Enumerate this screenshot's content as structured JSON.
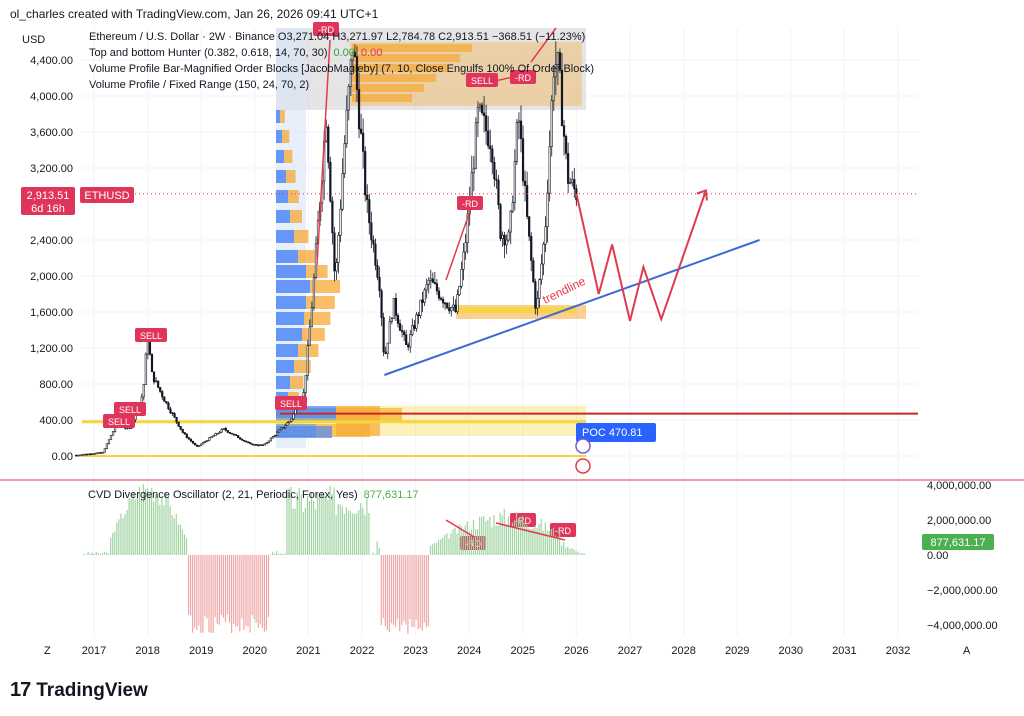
{
  "header": {
    "creator": "ol_charles created with TradingView.com, Jan 26, 2026 09:41 UTC+1"
  },
  "legend": {
    "line1": "Ethereum / U.S. Dollar · 2W · Binance  O3,271.04  H3,271.97  L2,784.78  C2,913.51  −368.51 (−11.23%)",
    "line2": "Top and bottom Hunter (0.382, 0.618, 14, 70, 30)",
    "line2_v1": "0.00",
    "line2_v2": "0.00",
    "line3": "Volume Profile Bar-Magnified Order Blocks [JacobMagleby] (7, 10, Close Engulfs 100% Of Order Block)",
    "line4": "Volume Profile / Fixed Range (150, 24, 70, 2)"
  },
  "price_axis": {
    "currency": "USD",
    "ticks": [
      "4,400.00",
      "4,000.00",
      "3,600.00",
      "3,200.00",
      "2,400.00",
      "2,000.00",
      "1,600.00",
      "1,200.00",
      "800.00",
      "400.00",
      "0.00"
    ],
    "last_price": "2,913.51",
    "countdown": "6d 16h",
    "symbol": "ETHUSD"
  },
  "annotations": {
    "trendline": "trendline",
    "poc": "POC  470.81",
    "sell": "SELL",
    "rd": "-RD"
  },
  "oscillator": {
    "title": "CVD Divergence Oscillator (2, 21, Periodic, Forex, Yes)",
    "value": "877,631.17",
    "axis_ticks": [
      "4,000,000.00",
      "2,000,000.00",
      "0.00",
      "−2,000,000.00",
      "−4,000,000.00"
    ],
    "value_badge": "877,631.17"
  },
  "time_axis": {
    "ticks": [
      "2017",
      "2018",
      "2019",
      "2020",
      "2021",
      "2022",
      "2023",
      "2024",
      "2025",
      "2026",
      "2027",
      "2028",
      "2029",
      "2030",
      "2031",
      "2032"
    ],
    "left_btn": "Z",
    "right_btn": "A"
  },
  "brand": {
    "name": "TradingView",
    "logo": "17"
  },
  "colors": {
    "bull": "#131722",
    "bear": "#131722",
    "trend": "#3d6ad6",
    "projection": "#e23b4b",
    "poc_line": "#c62828",
    "profile_blue": "#4f86f7",
    "profile_orange": "#f7a833",
    "profile_yellow": "#f5d63d",
    "osc_green": "#9fd3a0",
    "osc_red": "#f0a6a6",
    "badge_red": "#e0355a",
    "badge_green": "#4caf50",
    "poc_badge": "#2962ff"
  },
  "chart_data": {
    "type": "candlestick",
    "title": "Ethereum / U.S. Dollar · 2W · Binance",
    "ylim": [
      0,
      4800
    ],
    "x_range": [
      "2016-09",
      "2032-06"
    ],
    "price_path": [
      {
        "date": "2016-09",
        "price": 10
      },
      {
        "date": "2017-03",
        "price": 40
      },
      {
        "date": "2017-06",
        "price": 350
      },
      {
        "date": "2017-09",
        "price": 300
      },
      {
        "date": "2017-12",
        "price": 700
      },
      {
        "date": "2018-01",
        "price": 1350
      },
      {
        "date": "2018-02",
        "price": 900
      },
      {
        "date": "2018-05",
        "price": 600
      },
      {
        "date": "2018-09",
        "price": 250
      },
      {
        "date": "2018-12",
        "price": 100
      },
      {
        "date": "2019-06",
        "price": 300
      },
      {
        "date": "2019-12",
        "price": 130
      },
      {
        "date": "2020-03",
        "price": 120
      },
      {
        "date": "2020-09",
        "price": 400
      },
      {
        "date": "2020-12",
        "price": 700
      },
      {
        "date": "2021-02",
        "price": 1800
      },
      {
        "date": "2021-05",
        "price": 3800
      },
      {
        "date": "2021-07",
        "price": 1900
      },
      {
        "date": "2021-09",
        "price": 3400
      },
      {
        "date": "2021-11",
        "price": 4600
      },
      {
        "date": "2022-02",
        "price": 2800
      },
      {
        "date": "2022-05",
        "price": 1900
      },
      {
        "date": "2022-06",
        "price": 1050
      },
      {
        "date": "2022-08",
        "price": 1700
      },
      {
        "date": "2022-11",
        "price": 1200
      },
      {
        "date": "2023-04",
        "price": 1950
      },
      {
        "date": "2023-08",
        "price": 1700
      },
      {
        "date": "2023-10",
        "price": 1600
      },
      {
        "date": "2023-12",
        "price": 2300
      },
      {
        "date": "2024-03",
        "price": 3800
      },
      {
        "date": "2024-06",
        "price": 3500
      },
      {
        "date": "2024-08",
        "price": 2500
      },
      {
        "date": "2024-10",
        "price": 2400
      },
      {
        "date": "2024-12",
        "price": 3800
      },
      {
        "date": "2025-02",
        "price": 2600
      },
      {
        "date": "2025-04",
        "price": 1600
      },
      {
        "date": "2025-06",
        "price": 2500
      },
      {
        "date": "2025-08",
        "price": 4400
      },
      {
        "date": "2025-09",
        "price": 4300
      },
      {
        "date": "2025-11",
        "price": 3100
      },
      {
        "date": "2026-01",
        "price": 2914
      }
    ],
    "last_close": 2913.51,
    "poc": 470.81,
    "trendline": [
      {
        "date": "2022-06",
        "price": 900
      },
      {
        "date": "2029-06",
        "price": 2400
      }
    ],
    "projection_path": [
      {
        "date": "2026-01",
        "price": 2914
      },
      {
        "date": "2026-06",
        "price": 1800
      },
      {
        "date": "2026-09",
        "price": 2350
      },
      {
        "date": "2027-01",
        "price": 1500
      },
      {
        "date": "2027-04",
        "price": 2100
      },
      {
        "date": "2027-08",
        "price": 1520
      },
      {
        "date": "2028-06",
        "price": 2950
      }
    ],
    "oscillator": {
      "name": "CVD Divergence Oscillator",
      "ylim": [
        -4500000,
        4000000
      ],
      "value": 877631.17
    }
  }
}
